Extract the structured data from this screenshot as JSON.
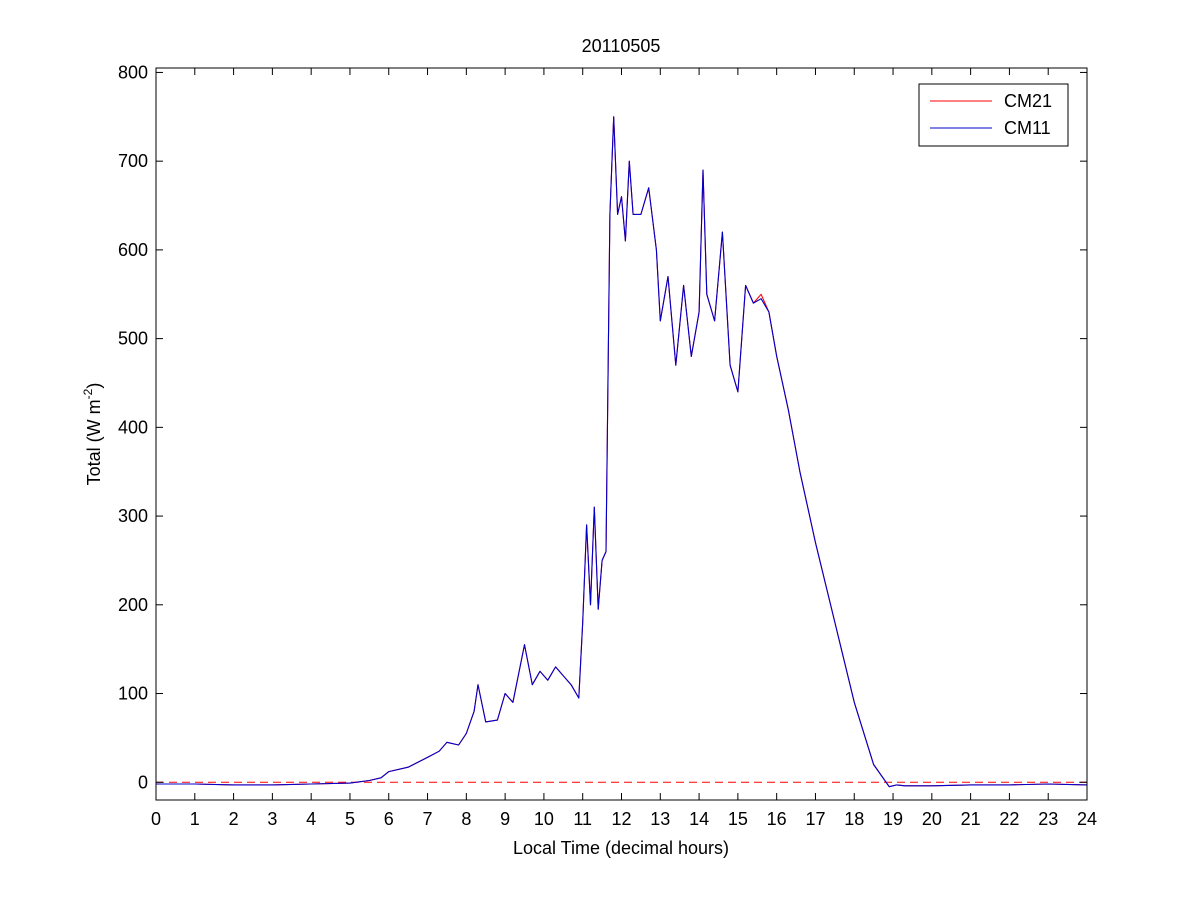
{
  "chart_data": {
    "type": "line",
    "title": "20110505",
    "xlabel": "Local Time (decimal hours)",
    "ylabel": {
      "prefix": "Total (W m",
      "sup": "-2",
      "suffix": ")"
    },
    "xlim": [
      0,
      24
    ],
    "ylim": [
      -20,
      805
    ],
    "xticks": [
      0,
      1,
      2,
      3,
      4,
      5,
      6,
      7,
      8,
      9,
      10,
      11,
      12,
      13,
      14,
      15,
      16,
      17,
      18,
      19,
      20,
      21,
      22,
      23,
      24
    ],
    "yticks": [
      0,
      100,
      200,
      300,
      400,
      500,
      600,
      700,
      800
    ],
    "grid": false,
    "legend_position": "top-right",
    "zero_reference": {
      "y": 0,
      "style": "dashed",
      "color": "#ff0000"
    },
    "series": [
      {
        "name": "CM21",
        "color": "#ff0000",
        "x": [
          0,
          1,
          2,
          3,
          4,
          5,
          5.5,
          5.8,
          6,
          6.5,
          7,
          7.3,
          7.5,
          7.8,
          8,
          8.2,
          8.3,
          8.5,
          8.8,
          9,
          9.2,
          9.5,
          9.7,
          9.9,
          10.1,
          10.3,
          10.5,
          10.7,
          10.9,
          11,
          11.1,
          11.2,
          11.3,
          11.4,
          11.5,
          11.6,
          11.7,
          11.8,
          11.9,
          12,
          12.1,
          12.2,
          12.3,
          12.5,
          12.7,
          12.9,
          13,
          13.2,
          13.4,
          13.6,
          13.8,
          14,
          14.1,
          14.2,
          14.4,
          14.6,
          14.8,
          15,
          15.2,
          15.4,
          15.6,
          15.8,
          16,
          16.3,
          16.6,
          17,
          17.5,
          18,
          18.5,
          18.9,
          19.1,
          19.3,
          20,
          21,
          22,
          23,
          24
        ],
        "y": [
          -2,
          -2,
          -3,
          -3,
          -2,
          -1,
          2,
          5,
          12,
          17,
          28,
          35,
          45,
          42,
          55,
          80,
          110,
          68,
          70,
          100,
          90,
          155,
          110,
          125,
          115,
          130,
          120,
          110,
          95,
          180,
          290,
          200,
          310,
          195,
          250,
          260,
          640,
          750,
          640,
          660,
          610,
          700,
          640,
          640,
          670,
          600,
          520,
          570,
          470,
          560,
          480,
          530,
          690,
          550,
          520,
          620,
          470,
          440,
          560,
          540,
          550,
          530,
          480,
          420,
          350,
          270,
          180,
          90,
          20,
          -5,
          -3,
          -4,
          -4,
          -3,
          -3,
          -2,
          -3
        ]
      },
      {
        "name": "CM11",
        "color": "#0000cc",
        "x": [
          0,
          1,
          2,
          3,
          4,
          5,
          5.5,
          5.8,
          6,
          6.5,
          7,
          7.3,
          7.5,
          7.8,
          8,
          8.2,
          8.3,
          8.5,
          8.8,
          9,
          9.2,
          9.5,
          9.7,
          9.9,
          10.1,
          10.3,
          10.5,
          10.7,
          10.9,
          11,
          11.1,
          11.2,
          11.3,
          11.4,
          11.5,
          11.6,
          11.7,
          11.8,
          11.9,
          12,
          12.1,
          12.2,
          12.3,
          12.5,
          12.7,
          12.9,
          13,
          13.2,
          13.4,
          13.6,
          13.8,
          14,
          14.1,
          14.2,
          14.4,
          14.6,
          14.8,
          15,
          15.2,
          15.4,
          15.6,
          15.8,
          16,
          16.3,
          16.6,
          17,
          17.5,
          18,
          18.5,
          18.9,
          19.1,
          19.3,
          20,
          21,
          22,
          23,
          24
        ],
        "y": [
          -2,
          -2,
          -3,
          -3,
          -2,
          -1,
          2,
          5,
          12,
          17,
          28,
          35,
          45,
          42,
          55,
          80,
          110,
          68,
          70,
          100,
          90,
          155,
          110,
          125,
          115,
          130,
          120,
          110,
          95,
          180,
          290,
          200,
          310,
          195,
          250,
          260,
          640,
          750,
          640,
          660,
          610,
          700,
          640,
          640,
          670,
          600,
          520,
          570,
          470,
          560,
          480,
          530,
          690,
          550,
          520,
          620,
          470,
          440,
          560,
          540,
          545,
          530,
          480,
          420,
          350,
          270,
          180,
          90,
          20,
          -5,
          -3,
          -4,
          -4,
          -3,
          -3,
          -2,
          -3
        ]
      }
    ]
  }
}
